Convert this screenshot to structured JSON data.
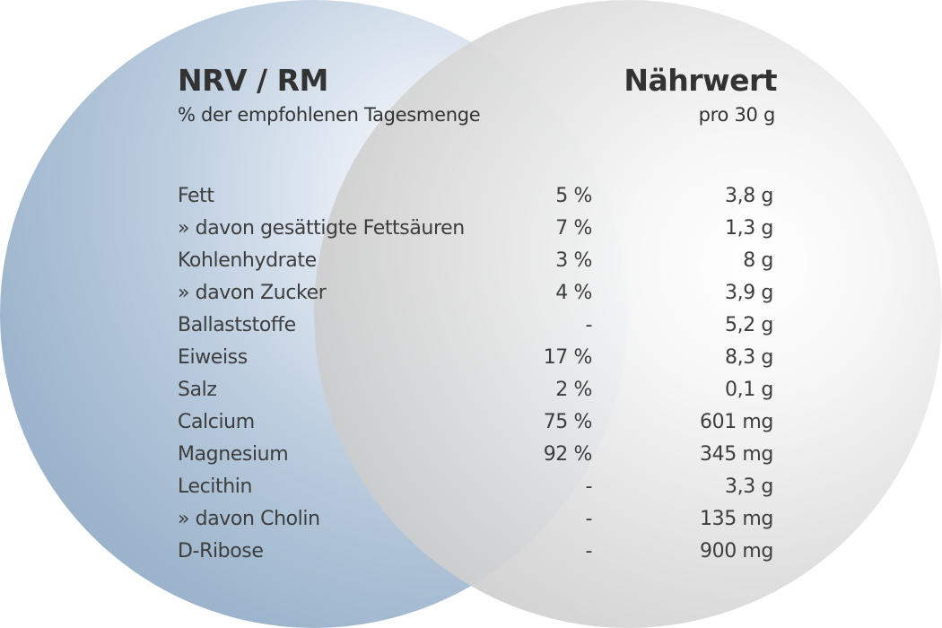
{
  "header": {
    "left_title": "NRV / RM",
    "left_subtitle": "% der empfohlenen Tagesmenge",
    "right_title": "Nährwert",
    "right_subtitle": "pro 30 g"
  },
  "rows": [
    {
      "name": "Fett",
      "nrv": "5 %",
      "value": "3,8 g"
    },
    {
      "name": "» davon gesättigte Fettsäuren",
      "nrv": "7 %",
      "value": "1,3 g"
    },
    {
      "name": "Kohlenhydrate",
      "nrv": "3 %",
      "value": "8 g"
    },
    {
      "name": "» davon Zucker",
      "nrv": "4 %",
      "value": "3,9 g"
    },
    {
      "name": "Ballaststoffe",
      "nrv": "-",
      "value": "5,2 g"
    },
    {
      "name": "Eiweiss",
      "nrv": "17 %",
      "value": "8,3 g"
    },
    {
      "name": "Salz",
      "nrv": "2 %",
      "value": "0,1 g"
    },
    {
      "name": "Calcium",
      "nrv": "75 %",
      "value": "601 mg"
    },
    {
      "name": "Magnesium",
      "nrv": "92 %",
      "value": "345 mg"
    },
    {
      "name": "Lecithin",
      "nrv": "-",
      "value": "3,3 g"
    },
    {
      "name": "» davon Cholin",
      "nrv": "-",
      "value": "135 mg"
    },
    {
      "name": "D-Ribose",
      "nrv": "-",
      "value": "900 mg"
    }
  ],
  "colors": {
    "left_circle": "#9db5cc",
    "right_circle": "#d4d4d4",
    "text": "#3a3a3a"
  }
}
